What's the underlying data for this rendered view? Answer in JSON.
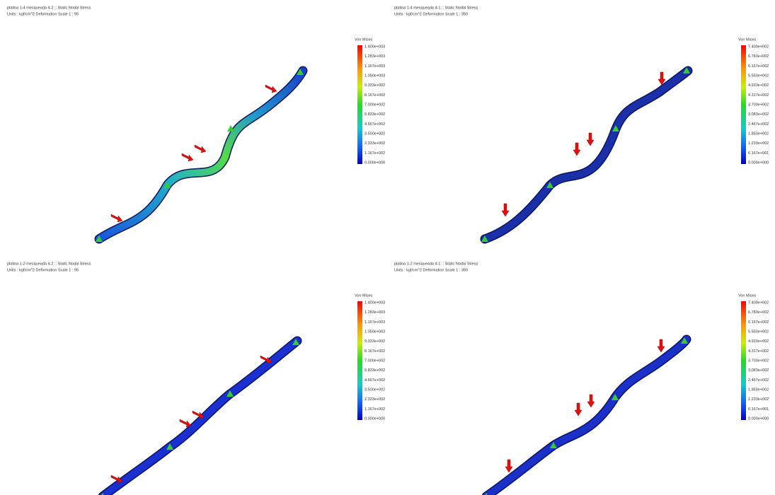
{
  "panels": [
    {
      "title": "platina 1-4 mesqueada 4-2 :: Static Nodal Stress",
      "units": "Units : kgf/cm^2  Deformation Scale 1 : 95",
      "legend_title": "Von Mises",
      "legend_labels": [
        "1.400e+003",
        "1.283e+003",
        "1.167e+003",
        "1.050e+003",
        "9.333e+002",
        "8.167e+002",
        "7.000e+002",
        "5.833e+002",
        "4.667e+002",
        "3.500e+002",
        "2.333e+002",
        "1.167e+002",
        "0.000e+000"
      ]
    },
    {
      "title": "platina 1-4 mesqueada 4-1 :: Static Nodal Stress",
      "units": "Units : kgf/cm^2  Deformation Scale 1 : 350",
      "legend_title": "Von Mises",
      "legend_labels": [
        "7.400e+002",
        "6.783e+002",
        "6.167e+002",
        "5.550e+002",
        "4.933e+002",
        "4.317e+002",
        "3.700e+002",
        "3.083e+002",
        "2.467e+002",
        "1.850e+002",
        "1.233e+002",
        "6.167e+001",
        "0.000e+000"
      ]
    },
    {
      "title": "platina 1-2 mesqueada 4-2 :: Static Nodal Stress",
      "units": "Units : kgf/cm^2  Deformation Scale 1 : 95",
      "legend_title": "Von Mises",
      "legend_labels": [
        "1.400e+003",
        "1.283e+003",
        "1.167e+003",
        "1.050e+003",
        "9.333e+002",
        "8.167e+002",
        "7.000e+002",
        "5.833e+002",
        "4.667e+002",
        "3.500e+002",
        "2.333e+002",
        "1.167e+002",
        "0.000e+000"
      ]
    },
    {
      "title": "platina 1-2 mesqueada 4-1 :: Static Nodal Stress",
      "units": "Units : kgf/cm^2  Deformation Scale 1 : 350",
      "legend_title": "Von Mises",
      "legend_labels": [
        "7.400e+002",
        "6.783e+002",
        "6.167e+002",
        "5.550e+002",
        "4.933e+002",
        "4.317e+002",
        "3.700e+002",
        "3.083e+002",
        "2.467e+002",
        "1.850e+002",
        "1.233e+002",
        "6.167e+001",
        "0.000e+000"
      ]
    }
  ]
}
